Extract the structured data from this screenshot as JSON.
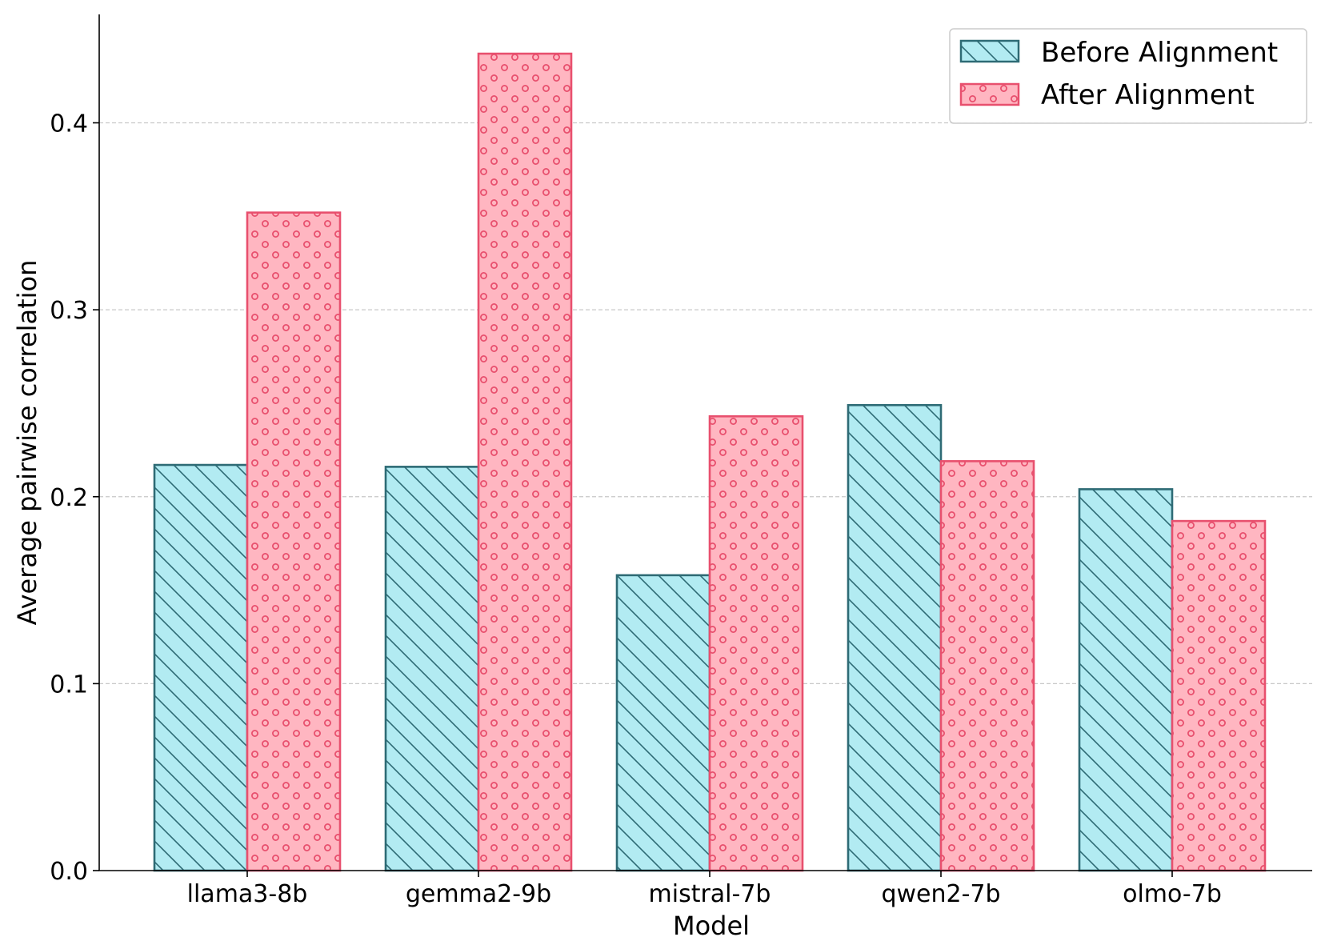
{
  "chart_data": {
    "type": "bar",
    "title": "",
    "xlabel": "Model",
    "ylabel": "Average pairwise correlation",
    "categories": [
      "llama3-8b",
      "gemma2-9b",
      "mistral-7b",
      "qwen2-7b",
      "olmo-7b"
    ],
    "series": [
      {
        "name": "Before Alignment",
        "values": [
          0.217,
          0.216,
          0.158,
          0.249,
          0.204
        ],
        "fill": "#b2ebf2",
        "edge": "#2e6b75",
        "hatch": "diagonal"
      },
      {
        "name": "After Alignment",
        "values": [
          0.352,
          0.437,
          0.243,
          0.219,
          0.187
        ],
        "fill": "#ffb6c1",
        "edge": "#e8506e",
        "hatch": "circles"
      }
    ],
    "ylim": [
      0,
      0.458
    ],
    "yticks": [
      0.0,
      0.1,
      0.2,
      0.3,
      0.4
    ],
    "ytick_labels": [
      "0.0",
      "0.1",
      "0.2",
      "0.3",
      "0.4"
    ],
    "grid": "y-dashed",
    "legend": "top-right"
  }
}
